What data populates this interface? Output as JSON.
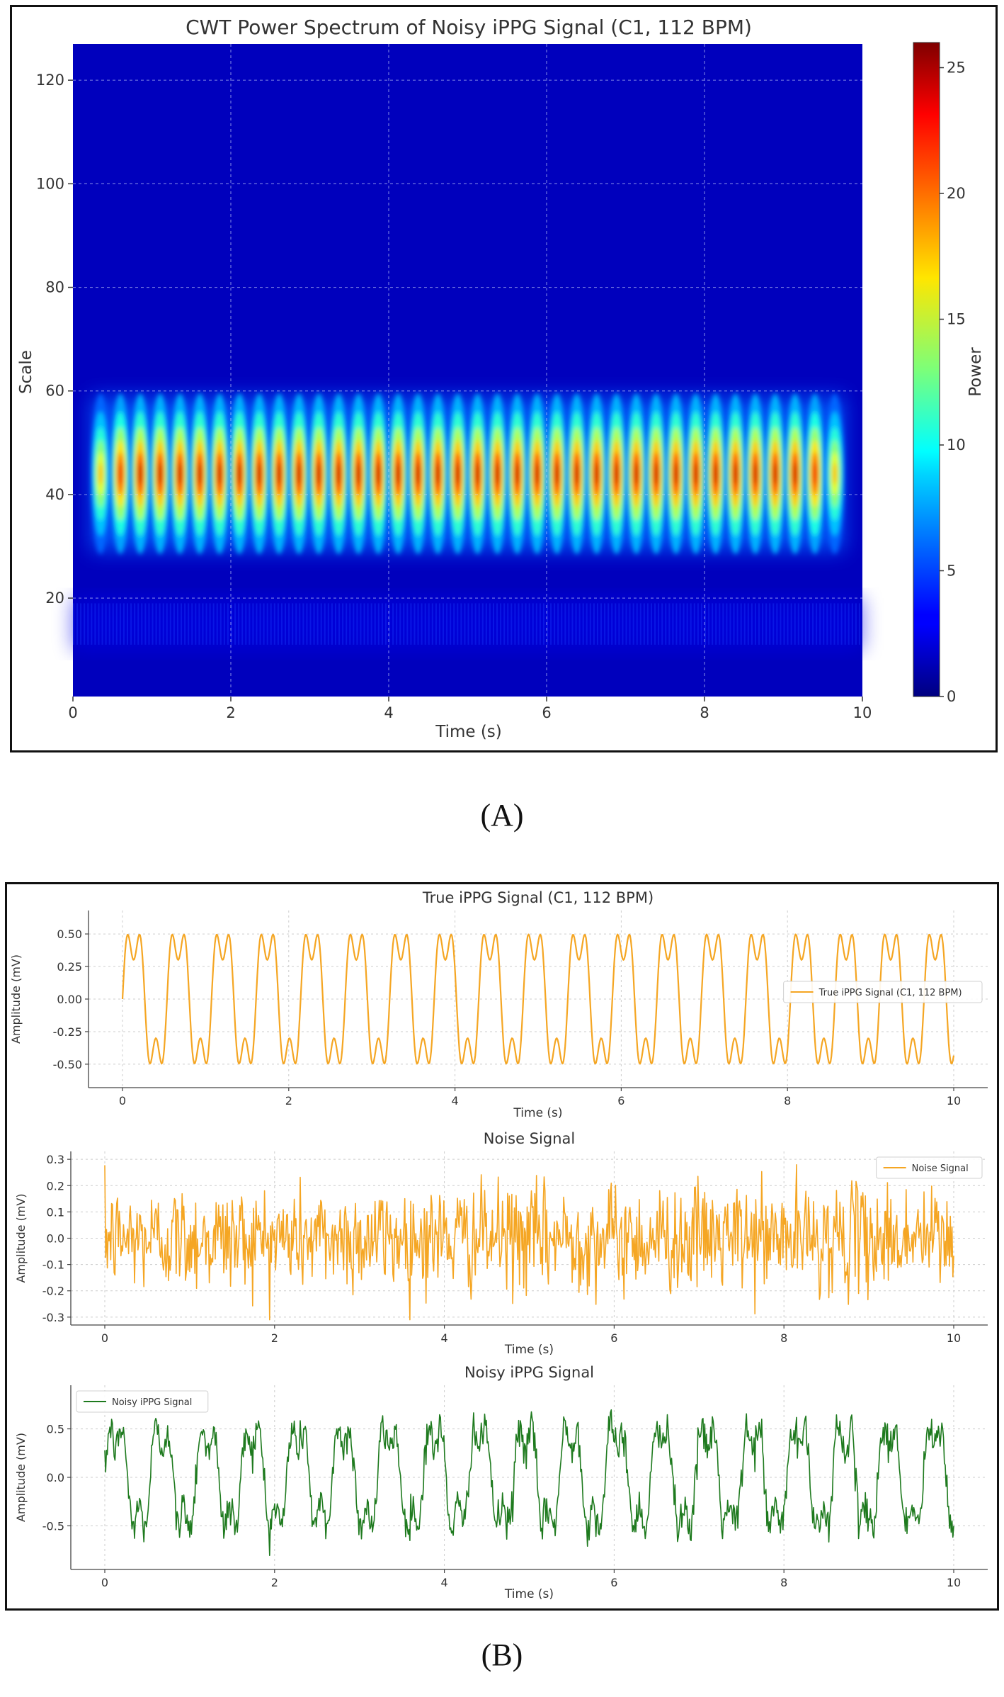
{
  "figure": {
    "caption_a": "(A)",
    "caption_b": "(B)"
  },
  "chart_data": [
    {
      "type": "heatmap",
      "title": "CWT Power Spectrum of Noisy iPPG Signal (C1, 112 BPM)",
      "xlabel": "Time (s)",
      "ylabel": "Scale",
      "xlim": [
        0,
        10
      ],
      "ylim": [
        1,
        127
      ],
      "xticks": [
        0,
        2,
        4,
        6,
        8,
        10
      ],
      "yticks": [
        20,
        40,
        60,
        80,
        100,
        120
      ],
      "grid": true,
      "colormap": "jet",
      "colorbar": {
        "label": "Power",
        "range": [
          0,
          26
        ],
        "ticks": [
          0,
          5,
          10,
          15,
          20,
          25
        ]
      },
      "band": {
        "center_scale": 44,
        "scale_halfwidth": 10,
        "peak_power": 25.8,
        "peak_count": 38,
        "weak_band_scale_range": [
          10,
          20
        ],
        "weak_band_power": 2
      }
    },
    {
      "type": "line",
      "title": "True iPPG Signal (C1, 112 BPM)",
      "xlabel": "Time (s)",
      "ylabel": "Amplitude (mV)",
      "xlim": [
        0,
        10
      ],
      "ylim": [
        -0.68,
        0.68
      ],
      "xticks": [
        0,
        2,
        4,
        6,
        8,
        10
      ],
      "yticks": [
        -0.5,
        -0.25,
        0.0,
        0.25,
        0.5
      ],
      "ytick_labels": [
        "-0.50",
        "-0.25",
        "0.00",
        "0.25",
        "0.50"
      ],
      "grid": true,
      "legend_position": "center-right",
      "series": [
        {
          "name": "True iPPG Signal (C1, 112 BPM)",
          "color": "#f5a623",
          "function": "0.5*sin(2*pi*1.8667*t) + 0.2*sin(2*pi*5.6*t)",
          "x_range": [
            0,
            10
          ]
        }
      ]
    },
    {
      "type": "line",
      "title": "Noise Signal",
      "xlabel": "Time (s)",
      "ylabel": "Amplitude (mV)",
      "xlim": [
        0,
        10
      ],
      "ylim": [
        -0.33,
        0.33
      ],
      "xticks": [
        0,
        2,
        4,
        6,
        8,
        10
      ],
      "yticks": [
        -0.3,
        -0.2,
        -0.1,
        0.0,
        0.1,
        0.2,
        0.3
      ],
      "ytick_labels": [
        "-0.3",
        "-0.2",
        "-0.1",
        "0.0",
        "0.1",
        "0.2",
        "0.3"
      ],
      "grid": true,
      "legend_position": "top-right",
      "series": [
        {
          "name": "Noise Signal",
          "color": "#f5a623",
          "noise_std": 0.1,
          "x_range": [
            0,
            10
          ]
        }
      ]
    },
    {
      "type": "line",
      "title": "Noisy iPPG Signal",
      "xlabel": "Time (s)",
      "ylabel": "Amplitude (mV)",
      "xlim": [
        0,
        10
      ],
      "ylim": [
        -0.95,
        0.95
      ],
      "xticks": [
        0,
        2,
        4,
        6,
        8,
        10
      ],
      "yticks": [
        -0.5,
        0.0,
        0.5
      ],
      "ytick_labels": [
        "-0.5",
        "0.0",
        "0.5"
      ],
      "grid": true,
      "legend_position": "top-left",
      "series": [
        {
          "name": "Noisy iPPG Signal",
          "color": "#1e7a1e",
          "function": "true iPPG + noise",
          "x_range": [
            0,
            10
          ]
        }
      ]
    }
  ]
}
